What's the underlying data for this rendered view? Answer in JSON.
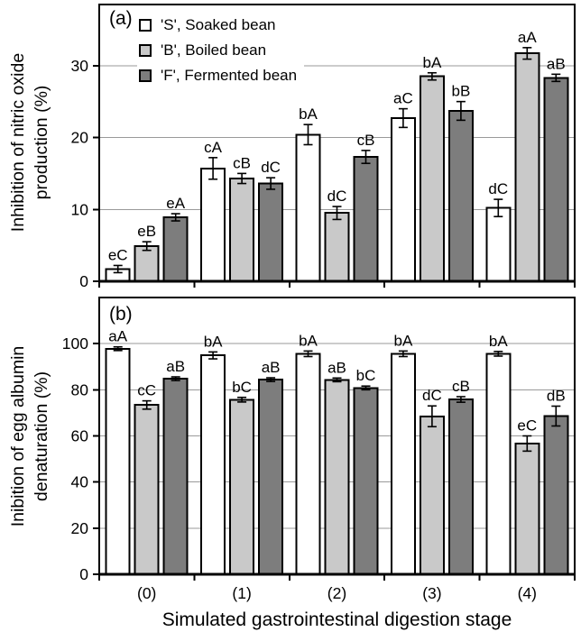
{
  "figure": {
    "panel_a_label": "(a)",
    "panel_b_label": "(b)",
    "xlabel": "Simulated gastrointestinal digestion stage"
  },
  "chart_data": [
    {
      "type": "bar",
      "panel": "(a)",
      "title": "",
      "ylabel": "Inhibition of nitric oxide\nproduction (%)",
      "xlabel": "Simulated gastrointestinal digestion stage",
      "categories": [
        "(0)",
        "(1)",
        "(2)",
        "(3)",
        "(4)"
      ],
      "ylim": [
        0,
        38.5
      ],
      "yticks": [
        0,
        10,
        20,
        30
      ],
      "grid": true,
      "legend_position": "top-left",
      "series": [
        {
          "name": "'S', Soaked bean",
          "color": "#ffffff",
          "values": [
            1.7,
            15.7,
            20.4,
            22.7,
            10.2
          ],
          "errors": [
            0.5,
            1.5,
            1.4,
            1.3,
            1.2
          ],
          "sig_labels": [
            "eC",
            "cA",
            "bA",
            "aC",
            "dC"
          ]
        },
        {
          "name": "'B', Boiled bean",
          "color": "#c9c9c9",
          "values": [
            4.9,
            14.3,
            9.5,
            28.5,
            31.7
          ],
          "errors": [
            0.6,
            0.7,
            0.9,
            0.5,
            0.8
          ],
          "sig_labels": [
            "eB",
            "cB",
            "dC",
            "bA",
            "aA"
          ]
        },
        {
          "name": "'F', Fermented bean",
          "color": "#7d7d7d",
          "values": [
            8.9,
            13.6,
            17.3,
            23.7,
            28.3
          ],
          "errors": [
            0.5,
            0.8,
            0.9,
            1.3,
            0.5
          ],
          "sig_labels": [
            "eA",
            "dC",
            "cB",
            "bB",
            "aB"
          ]
        }
      ]
    },
    {
      "type": "bar",
      "panel": "(b)",
      "title": "",
      "ylabel": "Inibition of egg albumin\ndenaturation (%)",
      "xlabel": "Simulated gastrointestinal digestion stage",
      "categories": [
        "(0)",
        "(1)",
        "(2)",
        "(3)",
        "(4)"
      ],
      "ylim": [
        0,
        120
      ],
      "yticks": [
        0,
        20,
        40,
        60,
        80,
        100
      ],
      "grid": true,
      "legend_position": "none",
      "series": [
        {
          "name": "'S', Soaked bean",
          "color": "#ffffff",
          "values": [
            97.8,
            94.9,
            95.6,
            95.6,
            95.6
          ],
          "errors": [
            0.8,
            1.5,
            1.2,
            1.2,
            1.0
          ],
          "sig_labels": [
            "aA",
            "bA",
            "bA",
            "bA",
            "bA"
          ]
        },
        {
          "name": "'B', Boiled bean",
          "color": "#c9c9c9",
          "values": [
            73.4,
            75.7,
            84.3,
            68.5,
            56.7
          ],
          "errors": [
            1.8,
            1.0,
            0.8,
            4.5,
            3.3
          ],
          "sig_labels": [
            "cC",
            "bC",
            "aB",
            "dC",
            "eC"
          ]
        },
        {
          "name": "'F', Fermented bean",
          "color": "#7d7d7d",
          "values": [
            84.8,
            84.4,
            80.8,
            75.8,
            68.6
          ],
          "errors": [
            0.8,
            0.8,
            0.8,
            1.2,
            4.3
          ],
          "sig_labels": [
            "aB",
            "aB",
            "bC",
            "cB",
            "dB"
          ]
        }
      ]
    }
  ],
  "style": {
    "grid_color": "#9a9a9a",
    "axis_color": "#000000",
    "text_color": "#000000"
  }
}
